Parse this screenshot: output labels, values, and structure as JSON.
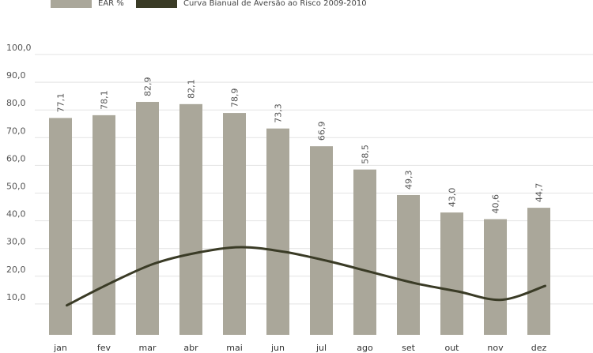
{
  "chart_data": {
    "type": "bar",
    "categories": [
      "jan",
      "fev",
      "mar",
      "abr",
      "mai",
      "jun",
      "jul",
      "ago",
      "set",
      "out",
      "nov",
      "dez"
    ],
    "series": [
      {
        "name": "EAR %",
        "type": "bar",
        "color": "#aaa79a",
        "values": [
          77.1,
          78.1,
          82.9,
          82.1,
          78.9,
          73.3,
          66.9,
          58.5,
          49.3,
          43.0,
          40.6,
          44.7
        ],
        "labels": [
          "77,1",
          "78,1",
          "82,9",
          "82,1",
          "78,9",
          "73,3",
          "66,9",
          "58,5",
          "49,3",
          "43,0",
          "40,6",
          "44,7"
        ]
      },
      {
        "name": "Curva Bianual de Aversão ao Risco 2009-2010",
        "type": "line",
        "color": "#3a3b26",
        "values": [
          9.5,
          17.5,
          24.5,
          28.5,
          30.5,
          28.8,
          25.5,
          21.5,
          17.5,
          14.5,
          11.5,
          16.5
        ]
      }
    ],
    "y_ticks": [
      "10,0",
      "20,0",
      "30,0",
      "40,0",
      "50,0",
      "60,0",
      "70,0",
      "80,0",
      "90,0",
      "100,0"
    ],
    "y_tick_values": [
      10,
      20,
      30,
      40,
      50,
      60,
      70,
      80,
      90,
      100
    ],
    "ylim": [
      0,
      100
    ],
    "grid": true,
    "legend_position": "top-left",
    "colors": {
      "grid": "#e3e3e3",
      "tick_text": "#555555"
    }
  }
}
